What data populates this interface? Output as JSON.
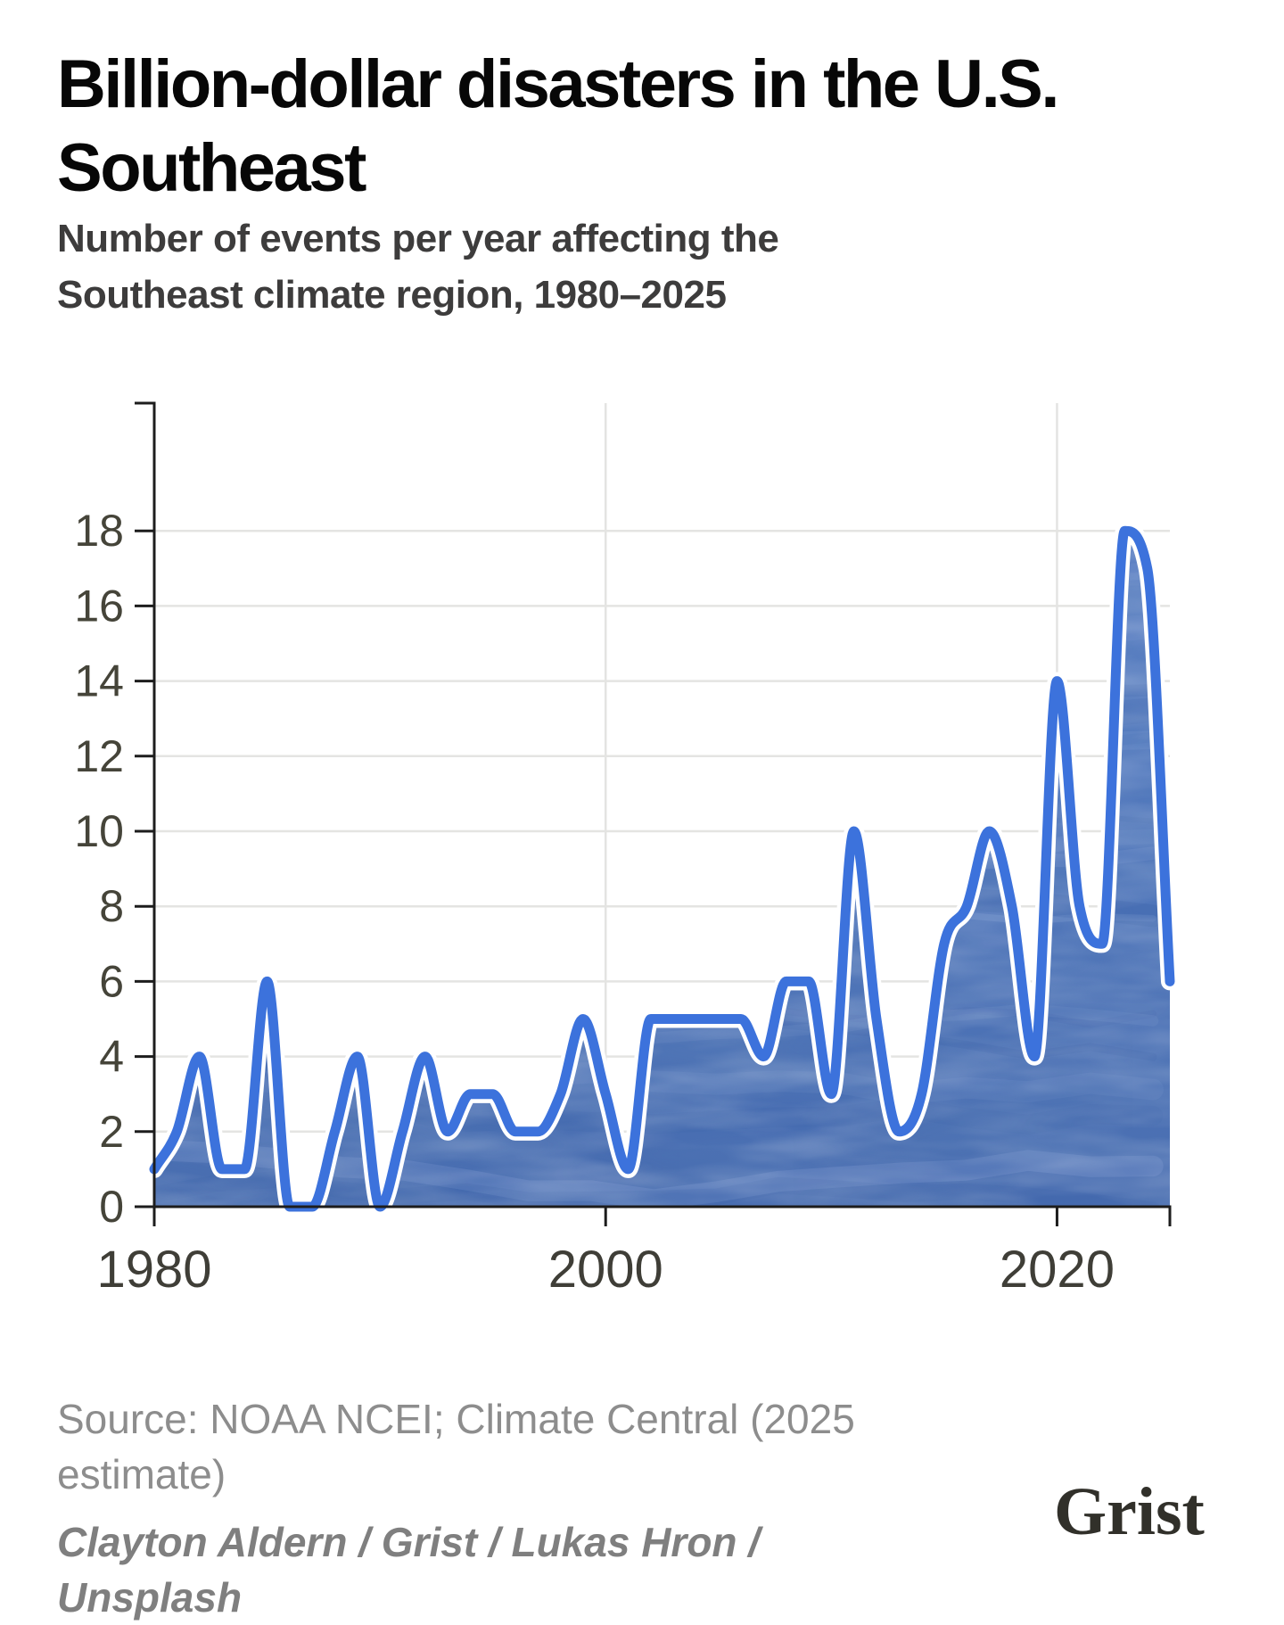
{
  "header": {
    "title_lines": [
      "Billion-dollar disasters in the U.S.",
      "Southeast"
    ],
    "subtitle_lines": [
      "Number of events per year affecting the",
      "Southeast climate region, 1980–2025"
    ]
  },
  "chart_data": {
    "type": "area",
    "title": "Billion-dollar disasters in the U.S. Southeast",
    "subtitle": "Number of events per year affecting the Southeast climate region, 1980–2025",
    "xlabel": "",
    "ylabel": "",
    "years": [
      1980,
      1981,
      1982,
      1983,
      1984,
      1985,
      1986,
      1987,
      1988,
      1989,
      1990,
      1991,
      1992,
      1993,
      1994,
      1995,
      1996,
      1997,
      1998,
      1999,
      2000,
      2001,
      2002,
      2003,
      2004,
      2005,
      2006,
      2007,
      2008,
      2009,
      2010,
      2011,
      2012,
      2013,
      2014,
      2015,
      2016,
      2017,
      2018,
      2019,
      2020,
      2021,
      2022,
      2023,
      2024,
      2025
    ],
    "values": [
      1,
      2,
      4,
      1,
      1,
      6,
      0,
      0,
      2,
      4,
      0,
      2,
      4,
      2,
      3,
      3,
      2,
      2,
      3,
      5,
      3,
      1,
      5,
      5,
      5,
      5,
      5,
      4,
      6,
      6,
      3,
      10,
      5,
      2,
      3,
      7,
      8,
      10,
      8,
      4,
      14,
      8,
      7,
      18,
      17,
      6
    ],
    "xlim": [
      1980,
      2025
    ],
    "ylim": [
      0,
      19
    ],
    "yticks": [
      0,
      2,
      4,
      6,
      8,
      10,
      12,
      14,
      16,
      18
    ],
    "xticks": [
      {
        "value": 1980,
        "label": "1980"
      },
      {
        "value": 2000,
        "label": "2000"
      },
      {
        "value": 2020,
        "label": "2020"
      },
      {
        "value": 2025,
        "label": ""
      }
    ],
    "grid": true,
    "legend": "none",
    "curve": "monotone",
    "colors": {
      "line": "#3c72dc",
      "line_halo": "#ffffff",
      "fill_base": "#4f77bb",
      "fill_light": "#7e9cd3",
      "fill_dark": "#365ea6",
      "grid": "#e4e4e2",
      "axis": "#1d1d1d",
      "tick_label": "#454439"
    }
  },
  "footer": {
    "source_lines": [
      "Source: NOAA NCEI; Climate Central (2025",
      "estimate)"
    ],
    "credit_lines": [
      "Clayton Aldern / Grist / Lukas Hron /",
      "Unsplash"
    ]
  },
  "logo": {
    "text": "Grist"
  }
}
